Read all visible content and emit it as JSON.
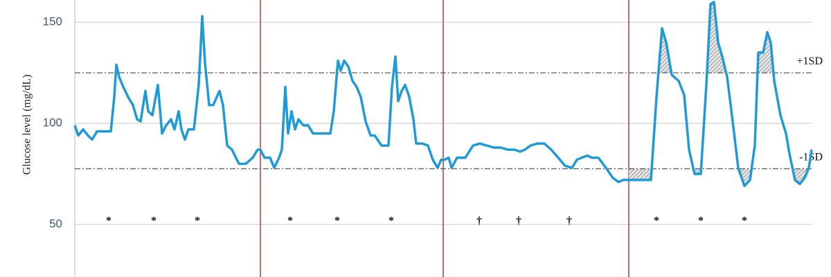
{
  "chart_data": {
    "type": "line",
    "y_label": "Glucose level (mg/dL)",
    "x": [
      0,
      5,
      12,
      19,
      25,
      32,
      42,
      52,
      57,
      60,
      64,
      70,
      77,
      84,
      90,
      95,
      102,
      106,
      112,
      120,
      126,
      132,
      139,
      144,
      150,
      154,
      159,
      164,
      172,
      179,
      184,
      188,
      194,
      200,
      205,
      209,
      214,
      220,
      227,
      237,
      247,
      257,
      264,
      268,
      274,
      282,
      288,
      295,
      299,
      304,
      308,
      313,
      318,
      323,
      330,
      337,
      344,
      352,
      362,
      369,
      374,
      380,
      384,
      389,
      395,
      401,
      407,
      413,
      420,
      427,
      433,
      443,
      453,
      458,
      463,
      467,
      472,
      477,
      483,
      489,
      493,
      502,
      510,
      517,
      524,
      529,
      534,
      540,
      544,
      552,
      564,
      575,
      585,
      595,
      605,
      615,
      625,
      635,
      643,
      650,
      658,
      668,
      678,
      688,
      698,
      708,
      718,
      725,
      732,
      740,
      747,
      756,
      767,
      777,
      785,
      792,
      800,
      810,
      824,
      832,
      840,
      848,
      854,
      862,
      872,
      880,
      887,
      895,
      904,
      912,
      918,
      923,
      929,
      935,
      942,
      950,
      958,
      967,
      975,
      982,
      987,
      994,
      1000,
      1005,
      1010,
      1019,
      1027,
      1032,
      1040,
      1047,
      1054,
      1060,
      1064
    ],
    "values": [
      99,
      94,
      97,
      94,
      92,
      96,
      96,
      96,
      113,
      129,
      123,
      118,
      113,
      109,
      102,
      101,
      116,
      106,
      104,
      119,
      95,
      99,
      102,
      97,
      106,
      97,
      92,
      97,
      97,
      119,
      153,
      130,
      109,
      109,
      113,
      116,
      109,
      89,
      87,
      80,
      80,
      83,
      87,
      87,
      83,
      83,
      78,
      83,
      87,
      118,
      95,
      106,
      97,
      102,
      99,
      99,
      95,
      95,
      95,
      95,
      106,
      131,
      126,
      131,
      128,
      121,
      118,
      113,
      101,
      94,
      94,
      89,
      89,
      118,
      133,
      111,
      116,
      119,
      113,
      102,
      90,
      90,
      89,
      82,
      78,
      82,
      82,
      83,
      78,
      83,
      83,
      89,
      90,
      89,
      88,
      88,
      87,
      87,
      86,
      87,
      89,
      90,
      90,
      87,
      83,
      79,
      78,
      82,
      83,
      84,
      83,
      83,
      78,
      73,
      71,
      72,
      72,
      72,
      72,
      72,
      113,
      147,
      140,
      124,
      121,
      114,
      87,
      75,
      75,
      119,
      159,
      160,
      140,
      133,
      123,
      101,
      78,
      69,
      72,
      89,
      135,
      135,
      145,
      140,
      121,
      104,
      95,
      85,
      72,
      70,
      73,
      78,
      87
    ],
    "color": "#1f9ad6",
    "xlim": [
      0,
      1064
    ],
    "ylim": [
      24,
      161
    ],
    "yticks": [
      50,
      100,
      150
    ],
    "grid": true,
    "reference_lines": [
      {
        "value": 125,
        "label": "+1SD"
      },
      {
        "value": 77.5,
        "label": "-1SD"
      }
    ],
    "dividers": [
      268,
      532,
      800
    ],
    "divider_color": "#c0393b",
    "markers": [
      {
        "x": 49,
        "label": "*"
      },
      {
        "x": 114,
        "label": "*"
      },
      {
        "x": 177,
        "label": "*"
      },
      {
        "x": 311,
        "label": "*"
      },
      {
        "x": 379,
        "label": "*"
      },
      {
        "x": 457,
        "label": "*"
      },
      {
        "x": 584,
        "label": "†"
      },
      {
        "x": 641,
        "label": "†"
      },
      {
        "x": 714,
        "label": "†"
      },
      {
        "x": 840,
        "label": "*"
      },
      {
        "x": 904,
        "label": "*"
      },
      {
        "x": 967,
        "label": "*"
      }
    ]
  }
}
